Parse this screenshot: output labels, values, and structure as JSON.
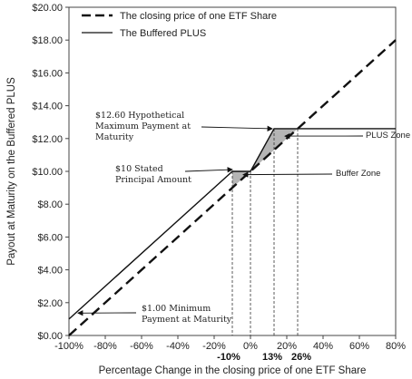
{
  "chart_data": {
    "type": "line",
    "xlabel": "Percentage Change in the closing price of one ETF Share",
    "ylabel": "Payout at Maturity on the Buffered PLUS",
    "xlim": [
      -100,
      80
    ],
    "ylim": [
      0,
      20
    ],
    "x_ticks": [
      "-100%",
      "-80%",
      "-60%",
      "-40%",
      "-20%",
      "0%",
      "20%",
      "40%",
      "60%",
      "80%"
    ],
    "y_ticks": [
      "$0.00",
      "$2.00",
      "$4.00",
      "$6.00",
      "$8.00",
      "$10.00",
      "$12.00",
      "$14.00",
      "$16.00",
      "$18.00",
      "$20.00"
    ],
    "legend": {
      "placement": "top-left",
      "entries": [
        "The closing price of one ETF Share",
        "The Buffered PLUS"
      ]
    },
    "series": [
      {
        "name": "The closing price of one ETF Share",
        "style": "dashed",
        "x": [
          -100,
          80
        ],
        "y": [
          0,
          18
        ]
      },
      {
        "name": "The Buffered PLUS",
        "style": "solid",
        "x": [
          -100,
          -10,
          0,
          13,
          80
        ],
        "y": [
          1,
          10,
          10,
          12.6,
          12.6
        ]
      }
    ],
    "marker_ticks": [
      {
        "x": -10,
        "label": "-10%"
      },
      {
        "x": 13,
        "label": "13%"
      },
      {
        "x": 26,
        "label": "26%"
      }
    ],
    "annotations": [
      {
        "lines": [
          "$12.60 Hypothetical",
          "Maximum Payment at",
          "Maturity"
        ],
        "point": [
          13,
          12.6
        ]
      },
      {
        "lines": [
          "$10 Stated",
          "Principal Amount"
        ],
        "point": [
          -7,
          10
        ]
      },
      {
        "lines": [
          "$1.00 Minimum",
          "Payment at Maturity"
        ],
        "point": [
          -92,
          1.2
        ]
      },
      {
        "lines": [
          "PLUS Zone"
        ],
        "point": [
          16,
          12.15
        ]
      },
      {
        "lines": [
          "Buffer Zone"
        ],
        "point": [
          -6,
          9.8
        ]
      }
    ]
  }
}
